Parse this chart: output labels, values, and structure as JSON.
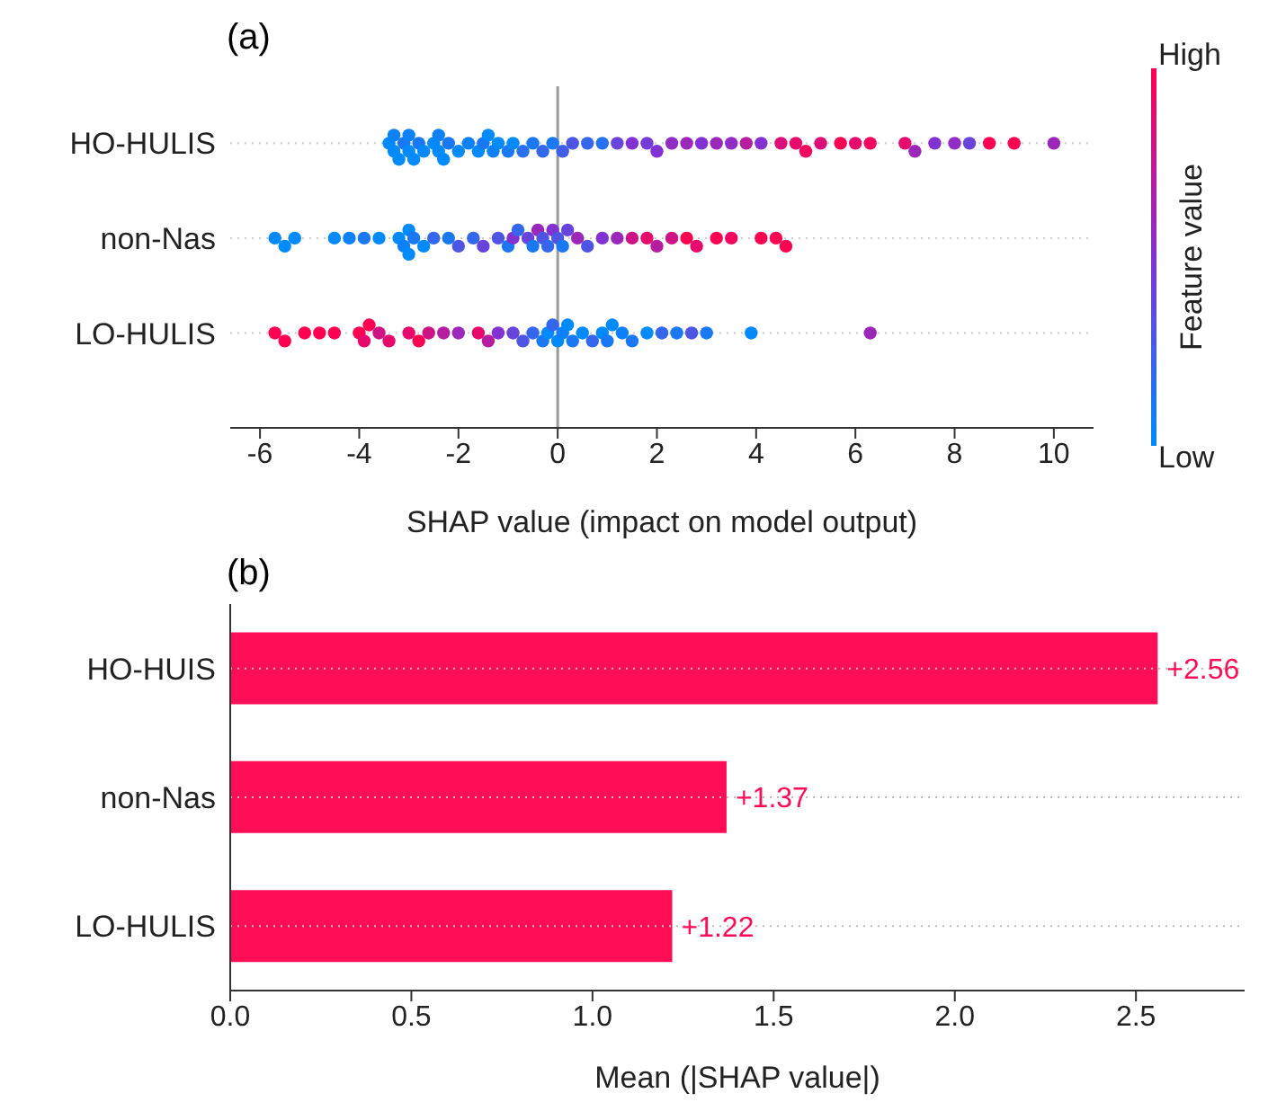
{
  "chart_data": [
    {
      "type": "scatter",
      "title": "(a)",
      "orientation": "horizontal",
      "categories": [
        "HO-HULIS",
        "non-Nas",
        "LO-HULIS"
      ],
      "xlabel": "SHAP value (impact on model output)",
      "clabel": "Feature value",
      "annotations": [
        "High",
        "Low"
      ],
      "xlim": [
        -6.6,
        10.8
      ],
      "xticks": [
        -6,
        -4,
        -2,
        0,
        2,
        4,
        6,
        8,
        10
      ],
      "grid": "y",
      "ref_lines": [
        {
          "axis": "x",
          "value": 0,
          "color": "#999999"
        }
      ],
      "marker": "circle",
      "series": [
        {
          "x": [
            "HO-HULIS",
            "HO-HULIS",
            "HO-HULIS",
            "HO-HULIS",
            "HO-HULIS",
            "HO-HULIS",
            "HO-HULIS",
            "HO-HULIS",
            "HO-HULIS",
            "HO-HULIS",
            "HO-HULIS",
            "HO-HULIS",
            "HO-HULIS",
            "HO-HULIS",
            "HO-HULIS",
            "HO-HULIS",
            "HO-HULIS",
            "HO-HULIS",
            "HO-HULIS",
            "HO-HULIS",
            "HO-HULIS",
            "HO-HULIS",
            "HO-HULIS",
            "HO-HULIS",
            "HO-HULIS",
            "HO-HULIS",
            "HO-HULIS",
            "HO-HULIS",
            "HO-HULIS",
            "HO-HULIS",
            "HO-HULIS",
            "HO-HULIS",
            "HO-HULIS",
            "HO-HULIS",
            "HO-HULIS",
            "HO-HULIS",
            "HO-HULIS",
            "HO-HULIS",
            "HO-HULIS",
            "HO-HULIS",
            "HO-HULIS",
            "HO-HULIS",
            "HO-HULIS",
            "HO-HULIS",
            "HO-HULIS",
            "HO-HULIS",
            "HO-HULIS",
            "HO-HULIS",
            "HO-HULIS",
            "HO-HULIS",
            "HO-HULIS",
            "HO-HULIS",
            "HO-HULIS",
            "HO-HULIS",
            "HO-HULIS",
            "HO-HULIS",
            "HO-HULIS",
            "HO-HULIS"
          ],
          "values": [
            -3.4,
            -3.3,
            -3.3,
            -3.2,
            -3.1,
            -3.0,
            -3.0,
            -2.9,
            -2.8,
            -2.7,
            -2.5,
            -2.4,
            -2.4,
            -2.3,
            -2.2,
            -2.0,
            -1.8,
            -1.6,
            -1.5,
            -1.4,
            -1.3,
            -1.2,
            -1.0,
            -0.9,
            -0.7,
            -0.5,
            -0.3,
            -0.1,
            0.1,
            0.3,
            0.6,
            0.9,
            1.2,
            1.5,
            1.8,
            2.0,
            2.3,
            2.6,
            2.9,
            3.2,
            3.5,
            3.8,
            4.1,
            4.5,
            4.8,
            5.0,
            5.3,
            5.7,
            6.0,
            6.3,
            7.0,
            7.2,
            7.6,
            8.0,
            8.3,
            8.7,
            9.2,
            10.0
          ],
          "colors": [
            "#008afb",
            "#008afb",
            "#0d81f7",
            "#008afb",
            "#1a78f3",
            "#008afb",
            "#0d81f7",
            "#008afb",
            "#1a78f3",
            "#008afb",
            "#008afb",
            "#008afb",
            "#0d81f7",
            "#008afb",
            "#1a78f3",
            "#008afb",
            "#0d81f7",
            "#008afb",
            "#1a78f3",
            "#008afb",
            "#0d81f7",
            "#008afb",
            "#1a78f3",
            "#008afb",
            "#2770ef",
            "#1a78f3",
            "#3467eb",
            "#1a78f3",
            "#415ee7",
            "#4e55e2",
            "#3467eb",
            "#2770ef",
            "#6844da",
            "#8232d2",
            "#753bd6",
            "#8232d2",
            "#8f2dc5",
            "#9b28b8",
            "#8232d2",
            "#9b28b8",
            "#8f2dc5",
            "#b41e9f",
            "#8232d2",
            "#da0f78",
            "#e60a6c",
            "#f3055f",
            "#da0f78",
            "#ff0052",
            "#e60a6c",
            "#f3055f",
            "#e60a6c",
            "#9b28b8",
            "#8232d2",
            "#8f2dc5",
            "#6844da",
            "#ff0052",
            "#ff0052",
            "#9b28b8"
          ]
        },
        {
          "x": [
            "non-Nas",
            "non-Nas",
            "non-Nas",
            "non-Nas",
            "non-Nas",
            "non-Nas",
            "non-Nas",
            "non-Nas",
            "non-Nas",
            "non-Nas",
            "non-Nas",
            "non-Nas",
            "non-Nas",
            "non-Nas",
            "non-Nas",
            "non-Nas",
            "non-Nas",
            "non-Nas",
            "non-Nas",
            "non-Nas",
            "non-Nas",
            "non-Nas",
            "non-Nas",
            "non-Nas",
            "non-Nas",
            "non-Nas",
            "non-Nas",
            "non-Nas",
            "non-Nas",
            "non-Nas",
            "non-Nas",
            "non-Nas",
            "non-Nas",
            "non-Nas",
            "non-Nas",
            "non-Nas",
            "non-Nas",
            "non-Nas",
            "non-Nas",
            "non-Nas",
            "non-Nas",
            "non-Nas",
            "non-Nas",
            "non-Nas",
            "non-Nas",
            "non-Nas"
          ],
          "values": [
            -5.7,
            -5.5,
            -5.3,
            -4.5,
            -4.2,
            -3.9,
            -3.6,
            -3.2,
            -3.1,
            -3.0,
            -3.0,
            -2.9,
            -2.7,
            -2.5,
            -2.2,
            -2.0,
            -1.7,
            -1.5,
            -1.2,
            -1.0,
            -0.9,
            -0.8,
            -0.6,
            -0.5,
            -0.4,
            -0.3,
            -0.2,
            -0.1,
            0,
            0.1,
            0.2,
            0.4,
            0.6,
            0.9,
            1.2,
            1.5,
            1.8,
            2.0,
            2.3,
            2.6,
            2.8,
            3.2,
            3.5,
            4.1,
            4.4,
            4.6
          ],
          "colors": [
            "#008afb",
            "#008afb",
            "#008afb",
            "#008afb",
            "#0d81f7",
            "#1a78f3",
            "#008afb",
            "#008afb",
            "#0d81f7",
            "#008afb",
            "#008afb",
            "#1a78f3",
            "#008afb",
            "#3467eb",
            "#1a78f3",
            "#4e55e2",
            "#3467eb",
            "#6844da",
            "#4e55e2",
            "#1a78f3",
            "#8232d2",
            "#3467eb",
            "#6844da",
            "#1a78f3",
            "#9b28b8",
            "#4e55e2",
            "#3467eb",
            "#8232d2",
            "#4e55e2",
            "#1a78f3",
            "#6844da",
            "#9b28b8",
            "#4e55e2",
            "#8232d2",
            "#9b28b8",
            "#cd1485",
            "#e60a6c",
            "#b41e9f",
            "#cd1485",
            "#ff0052",
            "#e60a6c",
            "#ff0052",
            "#f3055f",
            "#ff0052",
            "#ff0052",
            "#ff0052"
          ]
        },
        {
          "x": [
            "LO-HULIS",
            "LO-HULIS",
            "LO-HULIS",
            "LO-HULIS",
            "LO-HULIS",
            "LO-HULIS",
            "LO-HULIS",
            "LO-HULIS",
            "LO-HULIS",
            "LO-HULIS",
            "LO-HULIS",
            "LO-HULIS",
            "LO-HULIS",
            "LO-HULIS",
            "LO-HULIS",
            "LO-HULIS",
            "LO-HULIS",
            "LO-HULIS",
            "LO-HULIS",
            "LO-HULIS",
            "LO-HULIS",
            "LO-HULIS",
            "LO-HULIS",
            "LO-HULIS",
            "LO-HULIS",
            "LO-HULIS",
            "LO-HULIS",
            "LO-HULIS",
            "LO-HULIS",
            "LO-HULIS",
            "LO-HULIS",
            "LO-HULIS",
            "LO-HULIS",
            "LO-HULIS",
            "LO-HULIS",
            "LO-HULIS",
            "LO-HULIS",
            "LO-HULIS",
            "LO-HULIS",
            "LO-HULIS",
            "LO-HULIS",
            "LO-HULIS"
          ],
          "values": [
            -5.7,
            -5.5,
            -5.1,
            -4.8,
            -4.5,
            -4.0,
            -3.9,
            -3.8,
            -3.6,
            -3.4,
            -3.0,
            -2.8,
            -2.6,
            -2.3,
            -2.0,
            -1.6,
            -1.4,
            -1.2,
            -0.9,
            -0.7,
            -0.5,
            -0.3,
            -0.2,
            -0.1,
            0,
            0.1,
            0.2,
            0.3,
            0.5,
            0.7,
            0.9,
            1.0,
            1.1,
            1.3,
            1.5,
            1.8,
            2.1,
            2.4,
            2.7,
            3.0,
            3.9,
            6.3
          ],
          "colors": [
            "#ff0052",
            "#ff0052",
            "#ff0052",
            "#ff0052",
            "#ff0052",
            "#ff0052",
            "#e60a6c",
            "#ff0052",
            "#cd1485",
            "#e60a6c",
            "#e60a6c",
            "#ff0052",
            "#cd1485",
            "#b41e9f",
            "#9b28b8",
            "#e60a6c",
            "#b41e9f",
            "#8232d2",
            "#6844da",
            "#4e55e2",
            "#3467eb",
            "#1a78f3",
            "#008afb",
            "#3467eb",
            "#008afb",
            "#0d81f7",
            "#008afb",
            "#1a78f3",
            "#008afb",
            "#3467eb",
            "#008afb",
            "#1a78f3",
            "#008afb",
            "#0d81f7",
            "#1a78f3",
            "#008afb",
            "#3467eb",
            "#1a78f3",
            "#4e55e2",
            "#1a78f3",
            "#008afb",
            "#9b28b8"
          ]
        }
      ]
    },
    {
      "type": "bar",
      "title": "(b)",
      "orientation": "horizontal",
      "categories": [
        "HO-HUIS",
        "non-Nas",
        "LO-HULIS"
      ],
      "values": [
        2.56,
        1.37,
        1.22
      ],
      "value_labels": [
        "+2.56",
        "+1.37",
        "+1.22"
      ],
      "color": "#ff0d57",
      "xlabel": "Mean (|SHAP value|)",
      "xlim": [
        0,
        2.8
      ],
      "xticks": [
        {
          "value": 0,
          "label": "0.0"
        },
        {
          "value": 0.5,
          "label": "0.5"
        },
        {
          "value": 1,
          "label": "1.0"
        },
        {
          "value": 1.5,
          "label": "1.5"
        },
        {
          "value": 2,
          "label": "2.0"
        },
        {
          "value": 2.5,
          "label": "2.5"
        }
      ],
      "grid": "y"
    }
  ]
}
